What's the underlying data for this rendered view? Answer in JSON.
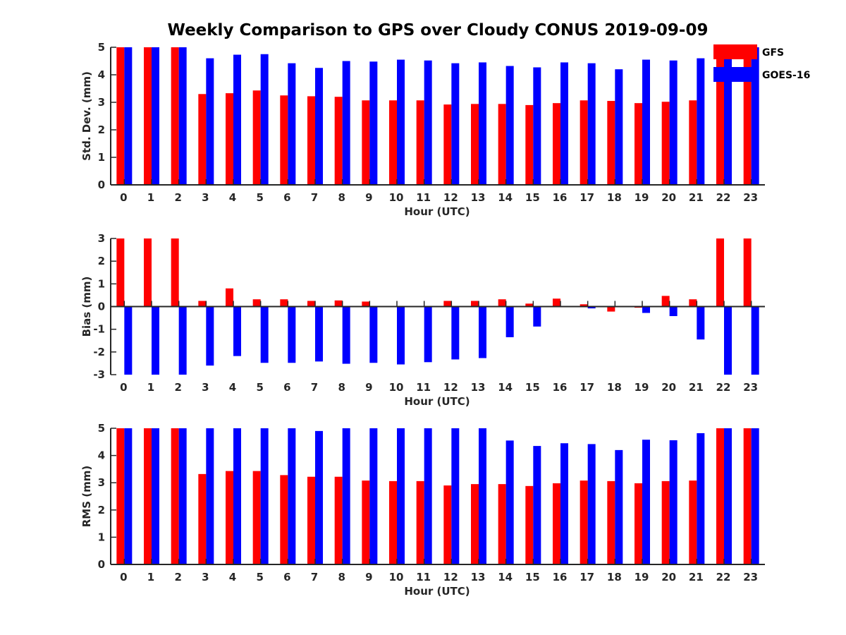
{
  "figure": {
    "title": "Weekly Comparison to GPS over Cloudy CONUS 2019-09-09"
  },
  "colors": {
    "GFS": "#ff0000",
    "GOES-16": "#0000ff"
  },
  "legend": {
    "placement": "top-right",
    "items": [
      {
        "name": "GFS",
        "color": "#ff0000"
      },
      {
        "name": "GOES-16",
        "color": "#0000ff"
      }
    ]
  },
  "chart_data": [
    {
      "type": "bar",
      "xlabel": "Hour (UTC)",
      "ylabel": "Std. Dev. (mm)",
      "ylim": [
        0,
        5
      ],
      "yticks": [
        0,
        1,
        2,
        3,
        4,
        5
      ],
      "grid": false,
      "categories": [
        "0",
        "1",
        "2",
        "3",
        "4",
        "5",
        "6",
        "7",
        "8",
        "9",
        "10",
        "11",
        "12",
        "13",
        "14",
        "15",
        "16",
        "17",
        "18",
        "19",
        "20",
        "21",
        "22",
        "23"
      ],
      "series": [
        {
          "name": "GFS",
          "values": [
            5,
            5,
            5,
            3.3,
            3.33,
            3.43,
            3.25,
            3.22,
            3.2,
            3.07,
            3.07,
            3.07,
            2.92,
            2.94,
            2.94,
            2.9,
            2.97,
            3.07,
            3.05,
            2.97,
            3.02,
            3.07,
            5,
            5
          ]
        },
        {
          "name": "GOES-16",
          "values": [
            5,
            5,
            5,
            4.6,
            4.73,
            4.75,
            4.42,
            4.25,
            4.5,
            4.48,
            4.55,
            4.52,
            4.42,
            4.45,
            4.32,
            4.27,
            4.45,
            4.42,
            4.2,
            4.55,
            4.52,
            4.6,
            5,
            5
          ]
        }
      ]
    },
    {
      "type": "bar",
      "xlabel": "Hour (UTC)",
      "ylabel": "Bias (mm)",
      "ylim": [
        -3,
        3
      ],
      "yticks": [
        -3,
        -2,
        -1,
        0,
        1,
        2,
        3
      ],
      "grid": false,
      "categories": [
        "0",
        "1",
        "2",
        "3",
        "4",
        "5",
        "6",
        "7",
        "8",
        "9",
        "10",
        "11",
        "12",
        "13",
        "14",
        "15",
        "16",
        "17",
        "18",
        "19",
        "20",
        "21",
        "22",
        "23"
      ],
      "series": [
        {
          "name": "GFS",
          "values": [
            3,
            3,
            3,
            0.25,
            0.8,
            0.32,
            0.32,
            0.25,
            0.27,
            0.22,
            -0.03,
            0.02,
            0.25,
            0.25,
            0.32,
            0.13,
            0.35,
            0.1,
            -0.22,
            -0.05,
            0.47,
            0.32,
            3,
            3
          ]
        },
        {
          "name": "GOES-16",
          "values": [
            -3,
            -3,
            -3,
            -2.6,
            -2.18,
            -2.48,
            -2.48,
            -2.42,
            -2.52,
            -2.48,
            -2.55,
            -2.45,
            -2.33,
            -2.27,
            -1.35,
            -0.88,
            0.0,
            -0.08,
            0.02,
            -0.28,
            -0.42,
            -1.45,
            -3,
            -3
          ]
        }
      ]
    },
    {
      "type": "bar",
      "xlabel": "Hour (UTC)",
      "ylabel": "RMS (mm)",
      "ylim": [
        0,
        5
      ],
      "yticks": [
        0,
        1,
        2,
        3,
        4,
        5
      ],
      "grid": false,
      "categories": [
        "0",
        "1",
        "2",
        "3",
        "4",
        "5",
        "6",
        "7",
        "8",
        "9",
        "10",
        "11",
        "12",
        "13",
        "14",
        "15",
        "16",
        "17",
        "18",
        "19",
        "20",
        "21",
        "22",
        "23"
      ],
      "series": [
        {
          "name": "GFS",
          "values": [
            5,
            5,
            5,
            3.32,
            3.43,
            3.43,
            3.28,
            3.22,
            3.22,
            3.08,
            3.06,
            3.06,
            2.9,
            2.95,
            2.95,
            2.88,
            2.98,
            3.08,
            3.06,
            2.98,
            3.06,
            3.08,
            5,
            5
          ]
        },
        {
          "name": "GOES-16",
          "values": [
            5,
            5,
            5,
            5,
            5,
            5,
            5,
            4.9,
            5,
            5,
            5,
            5,
            5,
            5,
            4.55,
            4.35,
            4.45,
            4.42,
            4.2,
            4.58,
            4.56,
            4.82,
            5,
            5
          ]
        }
      ]
    }
  ]
}
